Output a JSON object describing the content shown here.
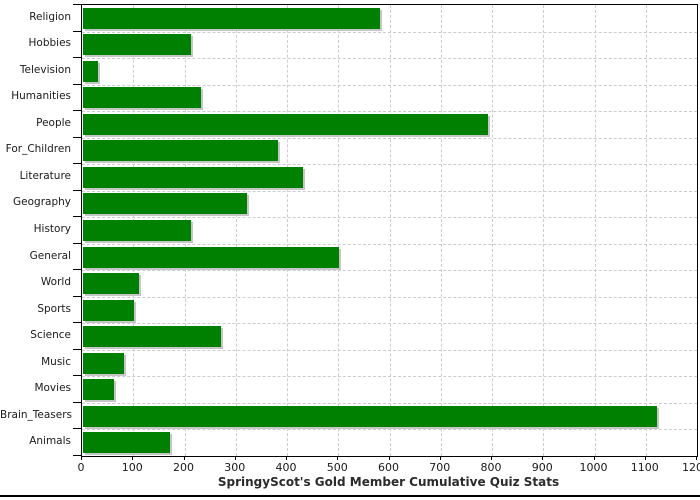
{
  "colors": {
    "bar": "#008000",
    "bar_shadow": "#c6c6c6",
    "grid": "#c9cdd1",
    "axis": "#000000",
    "text": "#1a1a1a"
  },
  "chart_data": {
    "type": "bar",
    "orientation": "horizontal",
    "title": "SpringyScot's Gold Member Cumulative Quiz Stats",
    "xlabel": "",
    "ylabel": "",
    "categories": [
      "Religion",
      "Hobbies",
      "Television",
      "Humanities",
      "People",
      "For_Children",
      "Literature",
      "Geography",
      "History",
      "General",
      "World",
      "Sports",
      "Science",
      "Music",
      "Movies",
      "Brain_Teasers",
      "Animals"
    ],
    "values": [
      580,
      210,
      30,
      230,
      790,
      380,
      430,
      320,
      210,
      500,
      110,
      100,
      270,
      80,
      60,
      1120,
      170
    ],
    "xlim": [
      0,
      1200
    ],
    "xticks": [
      0,
      100,
      200,
      300,
      400,
      500,
      600,
      700,
      800,
      900,
      1000,
      1100,
      1200
    ],
    "grid": true,
    "legend": "none",
    "bar_color": "#008000"
  }
}
